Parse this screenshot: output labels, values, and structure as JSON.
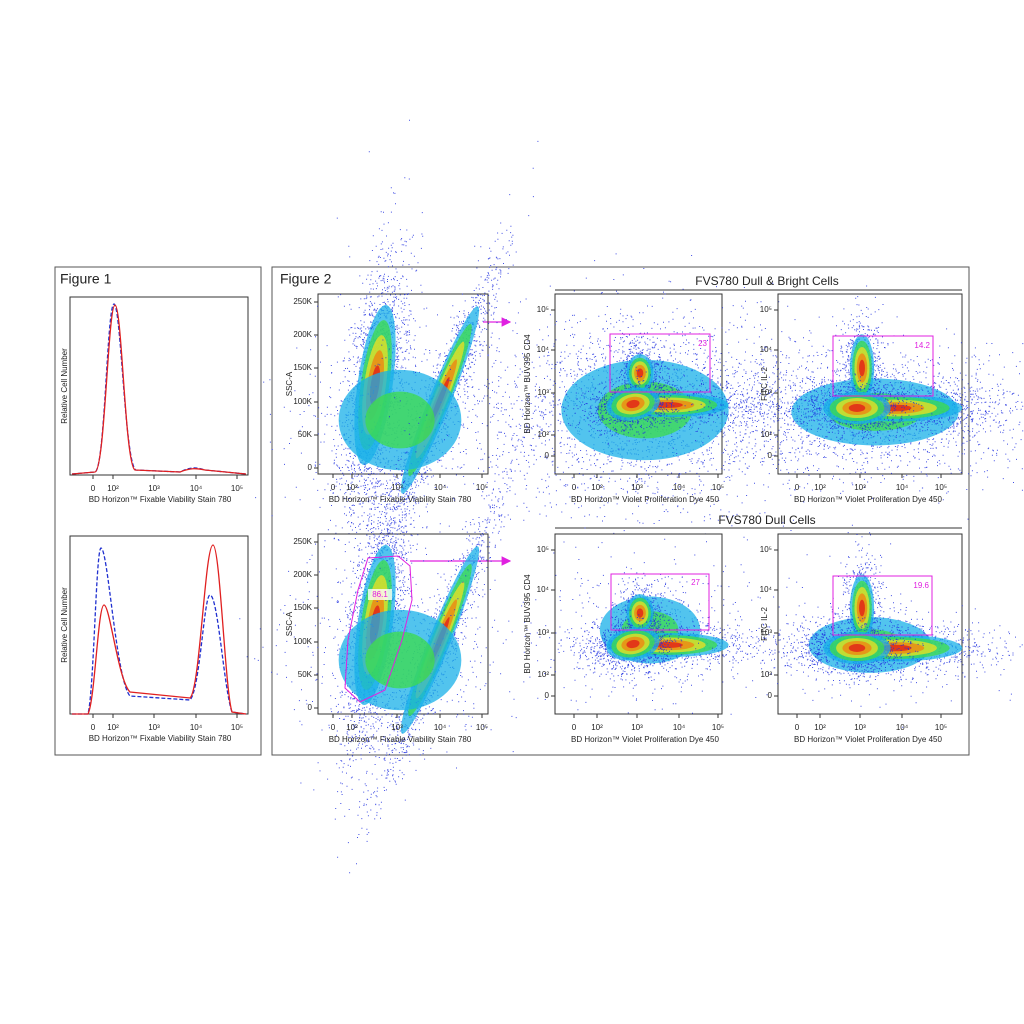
{
  "figure1": {
    "title": "Figure 1",
    "y_label": "Relative Cell Number",
    "x_label": "BD Horizon™ Fixable Viability Stain 780",
    "x_ticks": [
      "0",
      "10²",
      "10³",
      "10⁴",
      "10⁵"
    ]
  },
  "figure2": {
    "title": "Figure 2",
    "scatter": {
      "y_label": "SSC-A",
      "x_label": "BD Horizon™ Fixable Viability Stain 780",
      "y_ticks": [
        "250K",
        "200K",
        "150K",
        "100K",
        "50K",
        "0"
      ],
      "x_ticks": [
        "0",
        "10²",
        "10³",
        "10⁴",
        "10⁵"
      ]
    },
    "cd4": {
      "y_label": "BD Horizon™ BUV395 CD4",
      "y_ticks": [
        "10⁵",
        "10⁴",
        "10³",
        "10²",
        "0"
      ]
    },
    "il2": {
      "y_label": "FITC IL-2"
    },
    "vpd": {
      "x_label": "BD Horizon™ Violet Proliferation Dye 450",
      "x_ticks": [
        "0",
        "10²",
        "10³",
        "10⁴",
        "10⁵"
      ]
    },
    "rows": [
      {
        "header": "FVS780 Dull & Bright Cells",
        "cd4_gate": "23",
        "il2_gate": "14.2"
      },
      {
        "header": "FVS780 Dull Cells",
        "scatter_gate": "86.1",
        "cd4_gate": "27",
        "il2_gate": "19.6"
      }
    ]
  }
}
